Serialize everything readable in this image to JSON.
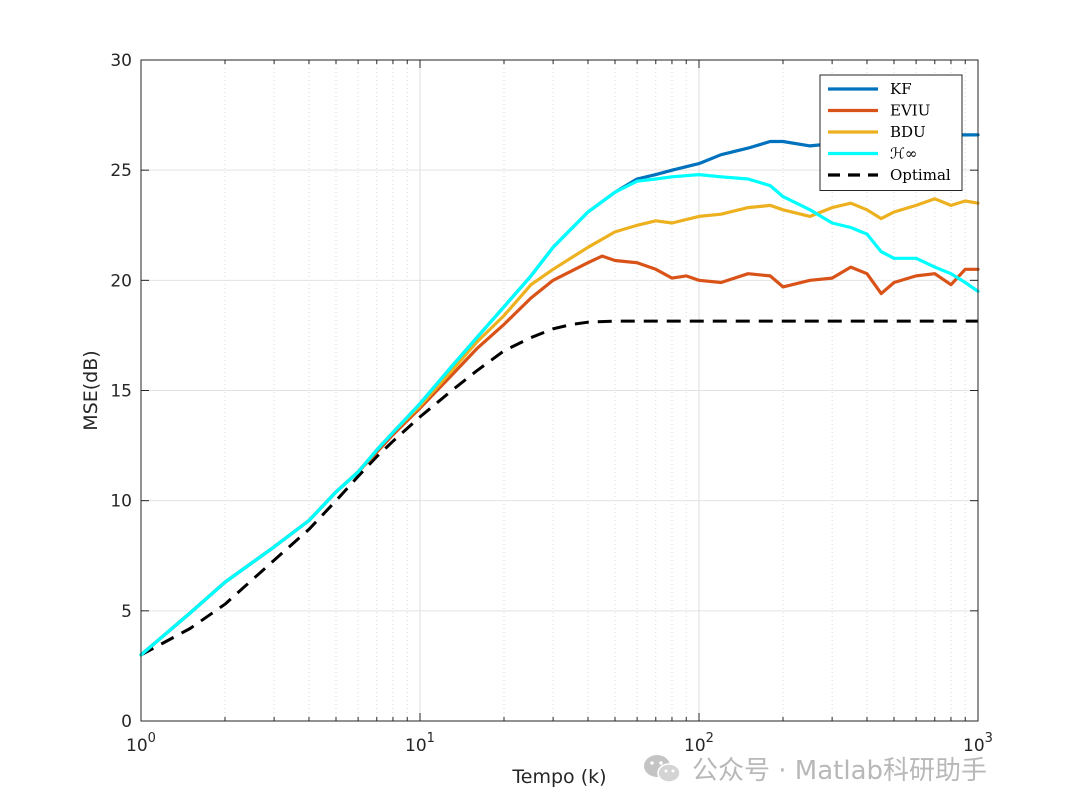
{
  "watermark": {
    "text": "公众号 · Matlab科研助手",
    "icon": "wechat-icon"
  },
  "chart_data": {
    "type": "line",
    "xscale": "log",
    "xlim": [
      1,
      1000
    ],
    "ylim": [
      0,
      30
    ],
    "xlabel": "Tempo (k)",
    "ylabel": "MSE(dB)",
    "grid": true,
    "legend_position": "top-right",
    "x_ticks": [
      {
        "base": "10",
        "exp": "0"
      },
      {
        "base": "10",
        "exp": "1"
      },
      {
        "base": "10",
        "exp": "2"
      },
      {
        "base": "10",
        "exp": "3"
      }
    ],
    "y_ticks": [
      "0",
      "5",
      "10",
      "15",
      "20",
      "25",
      "30"
    ],
    "series": [
      {
        "name": "KF",
        "color": "#0072BD",
        "style": "solid",
        "points": [
          [
            1,
            3
          ],
          [
            1.5,
            4.9
          ],
          [
            2,
            6.3
          ],
          [
            3,
            7.9
          ],
          [
            4,
            9.1
          ],
          [
            5,
            10.4
          ],
          [
            6,
            11.3
          ],
          [
            7,
            12.3
          ],
          [
            8,
            13.1
          ],
          [
            10,
            14.4
          ],
          [
            13,
            16.1
          ],
          [
            16,
            17.4
          ],
          [
            20,
            18.8
          ],
          [
            25,
            20.2
          ],
          [
            30,
            21.5
          ],
          [
            40,
            23.1
          ],
          [
            50,
            24
          ],
          [
            60,
            24.6
          ],
          [
            70,
            24.8
          ],
          [
            80,
            25
          ],
          [
            100,
            25.3
          ],
          [
            120,
            25.7
          ],
          [
            150,
            26
          ],
          [
            180,
            26.3
          ],
          [
            200,
            26.3
          ],
          [
            250,
            26.1
          ],
          [
            300,
            26.2
          ],
          [
            400,
            26.4
          ],
          [
            500,
            26.3
          ],
          [
            600,
            26.5
          ],
          [
            700,
            26.7
          ],
          [
            800,
            26.6
          ],
          [
            1000,
            26.6
          ]
        ]
      },
      {
        "name": "EVIU",
        "color": "#D95319",
        "style": "solid",
        "points": [
          [
            1,
            3
          ],
          [
            1.5,
            4.9
          ],
          [
            2,
            6.3
          ],
          [
            3,
            7.9
          ],
          [
            4,
            9.1
          ],
          [
            5,
            10.4
          ],
          [
            6,
            11.3
          ],
          [
            7,
            12.2
          ],
          [
            8,
            13
          ],
          [
            10,
            14.2
          ],
          [
            13,
            15.7
          ],
          [
            16,
            16.9
          ],
          [
            20,
            18
          ],
          [
            25,
            19.2
          ],
          [
            30,
            20
          ],
          [
            40,
            20.8
          ],
          [
            45,
            21.1
          ],
          [
            50,
            20.9
          ],
          [
            60,
            20.8
          ],
          [
            70,
            20.5
          ],
          [
            80,
            20.1
          ],
          [
            90,
            20.2
          ],
          [
            100,
            20
          ],
          [
            120,
            19.9
          ],
          [
            150,
            20.3
          ],
          [
            180,
            20.2
          ],
          [
            200,
            19.7
          ],
          [
            250,
            20
          ],
          [
            300,
            20.1
          ],
          [
            350,
            20.6
          ],
          [
            400,
            20.3
          ],
          [
            450,
            19.4
          ],
          [
            500,
            19.9
          ],
          [
            600,
            20.2
          ],
          [
            700,
            20.3
          ],
          [
            800,
            19.8
          ],
          [
            900,
            20.5
          ],
          [
            1000,
            20.5
          ]
        ]
      },
      {
        "name": "BDU",
        "color": "#EDB120",
        "style": "solid",
        "points": [
          [
            1,
            3
          ],
          [
            1.5,
            4.9
          ],
          [
            2,
            6.3
          ],
          [
            3,
            7.9
          ],
          [
            4,
            9.1
          ],
          [
            5,
            10.4
          ],
          [
            6,
            11.3
          ],
          [
            7,
            12.3
          ],
          [
            8,
            13.1
          ],
          [
            10,
            14.3
          ],
          [
            13,
            15.9
          ],
          [
            16,
            17.2
          ],
          [
            20,
            18.4
          ],
          [
            25,
            19.8
          ],
          [
            30,
            20.5
          ],
          [
            40,
            21.5
          ],
          [
            50,
            22.2
          ],
          [
            60,
            22.5
          ],
          [
            70,
            22.7
          ],
          [
            80,
            22.6
          ],
          [
            100,
            22.9
          ],
          [
            120,
            23
          ],
          [
            150,
            23.3
          ],
          [
            180,
            23.4
          ],
          [
            200,
            23.2
          ],
          [
            250,
            22.9
          ],
          [
            300,
            23.3
          ],
          [
            350,
            23.5
          ],
          [
            400,
            23.2
          ],
          [
            450,
            22.8
          ],
          [
            500,
            23.1
          ],
          [
            600,
            23.4
          ],
          [
            700,
            23.7
          ],
          [
            800,
            23.4
          ],
          [
            900,
            23.6
          ],
          [
            1000,
            23.5
          ]
        ]
      },
      {
        "name": "ℋ∞",
        "color": "#00FFFF",
        "style": "solid",
        "points": [
          [
            1,
            3
          ],
          [
            1.5,
            4.9
          ],
          [
            2,
            6.3
          ],
          [
            3,
            7.9
          ],
          [
            4,
            9.1
          ],
          [
            5,
            10.4
          ],
          [
            6,
            11.3
          ],
          [
            7,
            12.3
          ],
          [
            8,
            13.1
          ],
          [
            10,
            14.4
          ],
          [
            13,
            16.1
          ],
          [
            16,
            17.4
          ],
          [
            20,
            18.8
          ],
          [
            25,
            20.2
          ],
          [
            30,
            21.5
          ],
          [
            40,
            23.1
          ],
          [
            50,
            24
          ],
          [
            60,
            24.5
          ],
          [
            70,
            24.6
          ],
          [
            80,
            24.7
          ],
          [
            100,
            24.8
          ],
          [
            120,
            24.7
          ],
          [
            150,
            24.6
          ],
          [
            180,
            24.3
          ],
          [
            200,
            23.8
          ],
          [
            250,
            23.2
          ],
          [
            300,
            22.6
          ],
          [
            350,
            22.4
          ],
          [
            400,
            22.1
          ],
          [
            450,
            21.3
          ],
          [
            500,
            21
          ],
          [
            600,
            21
          ],
          [
            700,
            20.6
          ],
          [
            800,
            20.3
          ],
          [
            900,
            19.9
          ],
          [
            1000,
            19.5
          ]
        ]
      },
      {
        "name": "Optimal",
        "color": "#000000",
        "style": "dashed",
        "points": [
          [
            1,
            3
          ],
          [
            1.5,
            4.2
          ],
          [
            2,
            5.3
          ],
          [
            3,
            7.3
          ],
          [
            4,
            8.7
          ],
          [
            5,
            10
          ],
          [
            6,
            11.1
          ],
          [
            7,
            12
          ],
          [
            8,
            12.7
          ],
          [
            10,
            13.8
          ],
          [
            13,
            15
          ],
          [
            16,
            15.9
          ],
          [
            20,
            16.8
          ],
          [
            25,
            17.4
          ],
          [
            30,
            17.8
          ],
          [
            35,
            18
          ],
          [
            40,
            18.1
          ],
          [
            50,
            18.15
          ],
          [
            70,
            18.15
          ],
          [
            100,
            18.15
          ],
          [
            1000,
            18.15
          ]
        ]
      }
    ]
  }
}
